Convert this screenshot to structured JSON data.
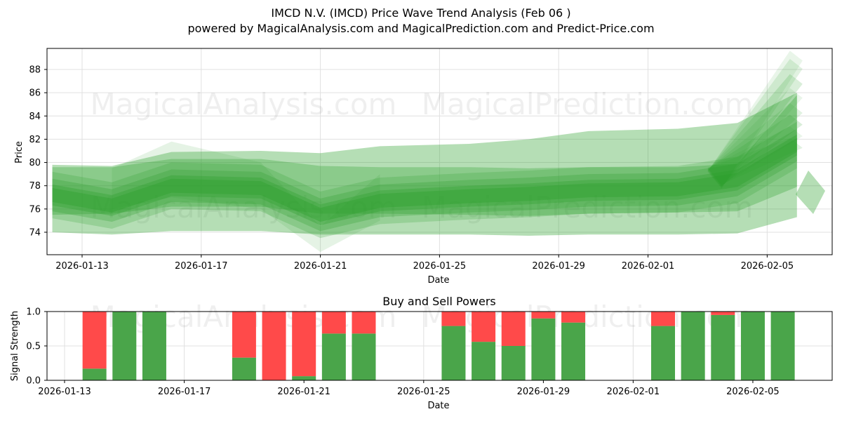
{
  "header": {
    "title": "IMCD N.V. (IMCD) Price Wave Trend Analysis (Feb 06 )",
    "subtitle": "powered by MagicalAnalysis.com and MagicalPrediction.com and Predict-Price.com"
  },
  "watermarks": [
    "MagicalAnalysis.com",
    "MagicalPrediction.com"
  ],
  "colors": {
    "band_green": "#2ca02c",
    "buy_green": "#4aa54a",
    "sell_red": "#ff4a4a",
    "grid": "#e0e0e0"
  },
  "chart_data": [
    {
      "type": "area",
      "title": "",
      "xlabel": "Date",
      "ylabel": "Price",
      "ylim": [
        72.1,
        89.7
      ],
      "yticks": [
        74,
        76,
        78,
        80,
        82,
        84,
        86,
        88
      ],
      "xticks": [
        "2026-01-13",
        "2026-01-17",
        "2026-01-21",
        "2026-01-25",
        "2026-01-29",
        "2026-02-01",
        "2026-02-05"
      ],
      "grid": true,
      "x": [
        "2026-01-12",
        "2026-01-14",
        "2026-01-16",
        "2026-01-19",
        "2026-01-21",
        "2026-01-23",
        "2026-01-26",
        "2026-01-28",
        "2026-01-30",
        "2026-02-02",
        "2026-02-04",
        "2026-02-06"
      ],
      "series": [
        {
          "name": "outer band upper",
          "values": [
            79.8,
            79.7,
            80.9,
            81.0,
            80.8,
            81.4,
            81.6,
            82.0,
            82.7,
            82.9,
            83.4,
            86.0
          ]
        },
        {
          "name": "outer band lower",
          "values": [
            74.0,
            73.8,
            74.1,
            74.1,
            73.8,
            73.8,
            73.8,
            73.7,
            73.8,
            73.8,
            73.9,
            75.3
          ]
        },
        {
          "name": "mid band upper",
          "values": [
            79.6,
            79.6,
            80.3,
            80.3,
            79.7,
            79.6,
            79.6,
            79.5,
            79.6,
            79.6,
            79.9,
            85.8
          ]
        },
        {
          "name": "mid band lower",
          "values": [
            75.5,
            75.6,
            76.2,
            76.2,
            75.6,
            75.6,
            75.5,
            75.4,
            75.6,
            75.7,
            75.8,
            77.9
          ]
        },
        {
          "name": "center wave",
          "values": [
            77.2,
            76.3,
            78.0,
            77.8,
            75.5,
            76.7,
            77.1,
            77.3,
            77.6,
            77.7,
            78.5,
            81.5
          ]
        }
      ],
      "forecast_spread_high": 89.0,
      "forecast_spread_low": 78.0
    },
    {
      "type": "bar",
      "title": "Buy and Sell Powers",
      "xlabel": "Date",
      "ylabel": "Signal Strength",
      "ylim": [
        0,
        1.0
      ],
      "yticks": [
        "0.0",
        "0.5",
        "1.0"
      ],
      "xticks": [
        "2026-01-13",
        "2026-01-17",
        "2026-01-21",
        "2026-01-25",
        "2026-01-29",
        "2026-02-01",
        "2026-02-05"
      ],
      "grid": true,
      "categories": [
        "2026-01-14",
        "2026-01-15",
        "2026-01-16",
        "2026-01-19",
        "2026-01-20",
        "2026-01-21",
        "2026-01-22",
        "2026-01-23",
        "2026-01-26",
        "2026-01-27",
        "2026-01-28",
        "2026-01-29",
        "2026-01-30",
        "2026-02-02",
        "2026-02-03",
        "2026-02-04",
        "2026-02-05",
        "2026-02-06"
      ],
      "series": [
        {
          "name": "Buy",
          "color": "#4aa54a",
          "values": [
            0.17,
            1.0,
            1.0,
            0.33,
            0.0,
            0.06,
            0.68,
            0.68,
            0.79,
            0.56,
            0.5,
            0.9,
            0.84,
            0.79,
            1.0,
            0.95,
            1.0,
            1.0
          ]
        },
        {
          "name": "Sell",
          "color": "#ff4a4a",
          "values": [
            0.83,
            0.0,
            0.0,
            0.67,
            1.0,
            0.94,
            0.32,
            0.32,
            0.21,
            0.44,
            0.5,
            0.1,
            0.16,
            0.21,
            0.0,
            0.05,
            0.0,
            0.0
          ]
        }
      ]
    }
  ]
}
